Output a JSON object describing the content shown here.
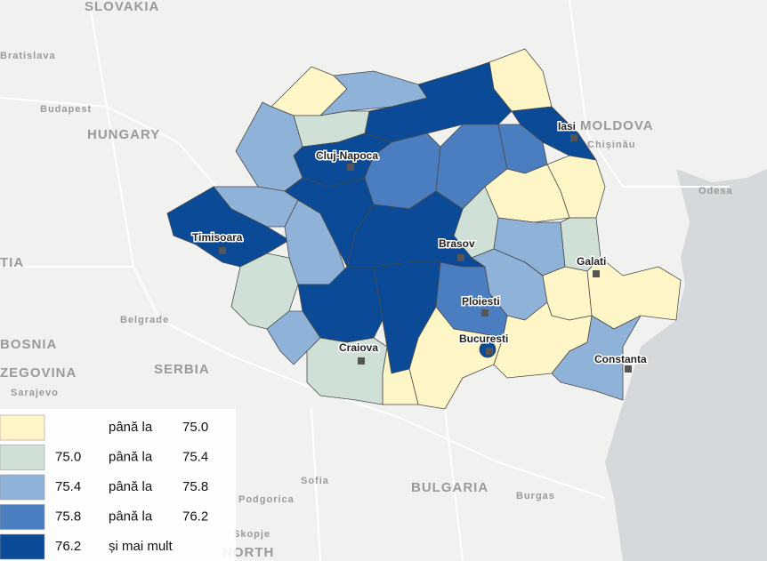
{
  "background_labels": [
    "SLOVAKIA",
    "Bratislava",
    "Budapest",
    "HUNGARY",
    "MOLDOVA",
    "Chișinău",
    "Odesa",
    "TIA",
    "Belgrade",
    "BOSNIA",
    "ZEGOVINA",
    "SERBIA",
    "Sarajevo",
    "Sofia",
    "BULGARIA",
    "Burgas",
    "Podgorica",
    "Skopje",
    "NORTH"
  ],
  "cities": [
    "Cluj-Napoca",
    "Iasi",
    "Timisoara",
    "Brasov",
    "Galati",
    "Ploiesti",
    "Bucuresti",
    "Craiova",
    "Constanta"
  ],
  "legend": [
    {
      "color": "#fff6c8",
      "connector": "până la",
      "to": "75.0"
    },
    {
      "color": "#cfe0d6",
      "from": "75.0",
      "connector": "până la",
      "to": "75.4"
    },
    {
      "color": "#8fb2d8",
      "from": "75.4",
      "connector": "până la",
      "to": "75.8"
    },
    {
      "color": "#4a7ec0",
      "from": "75.8",
      "connector": "până la",
      "to": "76.2"
    },
    {
      "color": "#0b4a96",
      "from": "76.2",
      "connector": "și mai mult"
    }
  ]
}
